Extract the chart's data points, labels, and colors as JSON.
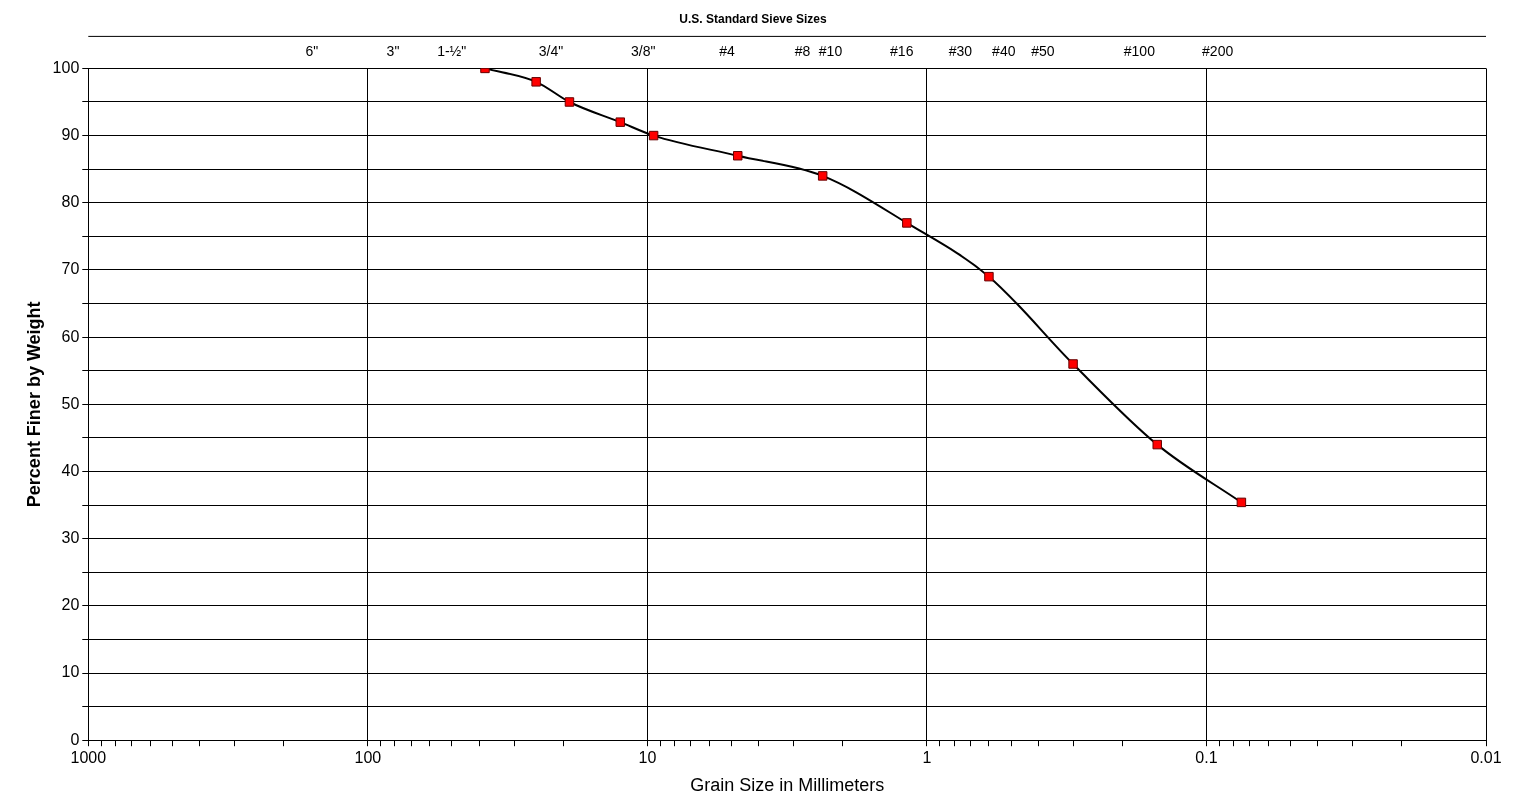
{
  "chart_data": {
    "type": "line",
    "xlabel": "Grain Size in Millimeters",
    "ylabel": "Percent Finer by Weight",
    "title": "U.S. Standard Sieve Sizes",
    "log": "x",
    "grid": true,
    "legend": false,
    "marker": "square",
    "line_style": "solid",
    "x": [
      38.1,
      25,
      19,
      12.5,
      9.5,
      4.75,
      2.36,
      1.18,
      0.6,
      0.3,
      0.15,
      0.075
    ],
    "series": [
      {
        "color": "#ff0000",
        "values": [
          100,
          98,
          95,
          92,
          90,
          87,
          84,
          77,
          69,
          56,
          44,
          35.4
        ]
      }
    ],
    "xlim": [
      1000,
      0.01
    ],
    "xticks": [
      1000,
      {
        "value": 900,
        "label": null
      },
      {
        "value": 800,
        "label": null
      },
      {
        "value": 700,
        "label": null
      },
      {
        "value": 600,
        "label": null
      },
      {
        "value": 500,
        "label": null
      },
      {
        "value": 400,
        "label": null
      },
      {
        "value": 300,
        "label": null
      },
      {
        "value": 200,
        "label": null
      },
      100,
      {
        "value": 90,
        "label": null
      },
      {
        "value": 80,
        "label": null
      },
      {
        "value": 70,
        "label": null
      },
      {
        "value": 60,
        "label": null
      },
      {
        "value": 50,
        "label": null
      },
      {
        "value": 40,
        "label": null
      },
      {
        "value": 30,
        "label": null
      },
      {
        "value": 20,
        "label": null
      },
      10,
      {
        "value": 9,
        "label": null
      },
      {
        "value": 8,
        "label": null
      },
      {
        "value": 7,
        "label": null
      },
      {
        "value": 6,
        "label": null
      },
      {
        "value": 5,
        "label": null
      },
      {
        "value": 4,
        "label": null
      },
      {
        "value": 3,
        "label": null
      },
      {
        "value": 2,
        "label": null
      },
      1,
      {
        "value": 0.9,
        "label": null
      },
      {
        "value": 0.8,
        "label": null
      },
      {
        "value": 0.7,
        "label": null
      },
      {
        "value": 0.6,
        "label": null
      },
      {
        "value": 0.5,
        "label": null
      },
      {
        "value": 0.4,
        "label": null
      },
      {
        "value": 0.3,
        "label": null
      },
      {
        "value": 0.2,
        "label": null
      },
      0.1,
      {
        "value": 0.09,
        "label": null
      },
      {
        "value": 0.08,
        "label": null
      },
      {
        "value": 0.07,
        "label": null
      },
      {
        "value": 0.06,
        "label": null
      },
      {
        "value": 0.05,
        "label": null
      },
      {
        "value": 0.04,
        "label": null
      },
      {
        "value": 0.03,
        "label": null
      },
      {
        "value": 0.02,
        "label": null
      },
      0.01
    ],
    "annotations": [
      "6\"",
      "3\"",
      "1-½\"",
      "3/4\"",
      "3/8\"",
      "#4",
      "#8",
      "#10",
      "#16",
      "#30",
      "#40",
      "#50",
      "#100",
      "#200"
    ],
    "ylim": [
      0,
      100
    ],
    "yticks": [
      0,
      {
        "value": 5,
        "label": null
      },
      10,
      {
        "value": 15,
        "label": null
      },
      20,
      {
        "value": 25,
        "label": null
      },
      30,
      {
        "value": 35,
        "label": null
      },
      40,
      {
        "value": 45,
        "label": null
      },
      50,
      {
        "value": 55,
        "label": null
      },
      60,
      {
        "value": 65,
        "label": null
      },
      70,
      {
        "value": 75,
        "label": null
      },
      80,
      {
        "value": 85,
        "label": null
      },
      90,
      {
        "value": 95,
        "label": null
      },
      100
    ]
  }
}
